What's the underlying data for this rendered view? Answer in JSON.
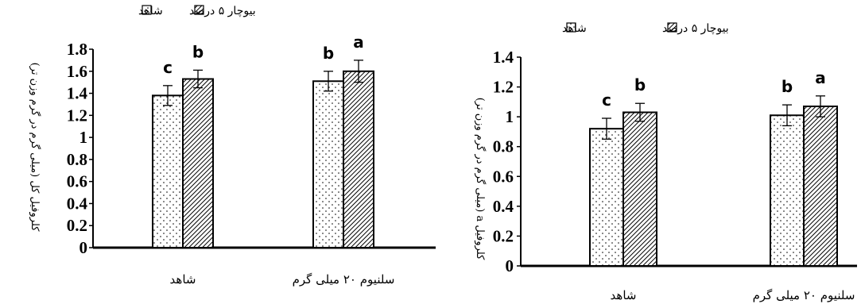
{
  "chart_data": [
    {
      "type": "bar",
      "ylabel": "کلروفیل کل (میلی گرم در گرم وزن تر)",
      "categories": [
        "شاهد",
        "سلنیوم ۲۰ میلی گرم"
      ],
      "ylim": [
        0,
        1.8
      ],
      "yticks": [
        "0",
        "0.2",
        "0.4",
        "0.6",
        "0.8",
        "1",
        "1.2",
        "1.4",
        "1.6",
        "1.8"
      ],
      "legend": [
        "شاهد",
        "بیوچار ۵ درصد"
      ],
      "legend_position": "top",
      "series": [
        {
          "name": "شاهد",
          "pattern": "dots",
          "values": [
            1.38,
            1.51
          ],
          "errors": [
            0.09,
            0.09
          ],
          "labels": [
            "c",
            "b"
          ]
        },
        {
          "name": "بیوچار ۵ درصد",
          "pattern": "hatch",
          "values": [
            1.53,
            1.6
          ],
          "errors": [
            0.08,
            0.1
          ],
          "labels": [
            "b",
            "a"
          ]
        }
      ]
    },
    {
      "type": "bar",
      "ylabel": "کلروفیل a (میلی گرم در گرم وزن تر)",
      "categories": [
        "شاهد",
        "سلنیوم ۲۰ میلی گرم"
      ],
      "ylim": [
        0,
        1.4
      ],
      "yticks": [
        "0",
        "0.2",
        "0.4",
        "0.6",
        "0.8",
        "1",
        "1.2",
        "1.4"
      ],
      "legend": [
        "شاهد",
        "بیوچار ۵ درصد"
      ],
      "legend_position": "top",
      "series": [
        {
          "name": "شاهد",
          "pattern": "dots",
          "values": [
            0.92,
            1.01
          ],
          "errors": [
            0.07,
            0.07
          ],
          "labels": [
            "c",
            "b"
          ]
        },
        {
          "name": "بیوچار ۵ درصد",
          "pattern": "hatch",
          "values": [
            1.03,
            1.07
          ],
          "errors": [
            0.06,
            0.07
          ],
          "labels": [
            "b",
            "a"
          ]
        }
      ]
    }
  ]
}
